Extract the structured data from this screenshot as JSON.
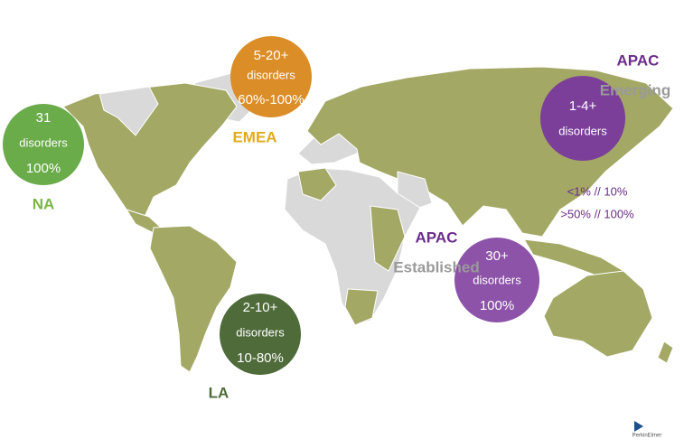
{
  "regions": [
    {
      "name": "NA",
      "lines": [
        "31",
        "disorders",
        "100%"
      ]
    },
    {
      "name": "EMEA",
      "lines": [
        "5-20+",
        "disorders",
        "60%-100%"
      ]
    },
    {
      "name": "LA",
      "lines": [
        "2-10+",
        "disorders",
        "10-80%"
      ]
    },
    {
      "name": "APAC",
      "subtitle": "Emerging",
      "lines": [
        "1-4+",
        "disorders"
      ],
      "notes": [
        "<1% // 10%",
        ">50% // 100%"
      ]
    },
    {
      "name": "APAC",
      "subtitle": "Established",
      "lines": [
        "30+",
        "disorders",
        "100%"
      ]
    }
  ],
  "logo": "PerkinElmer"
}
